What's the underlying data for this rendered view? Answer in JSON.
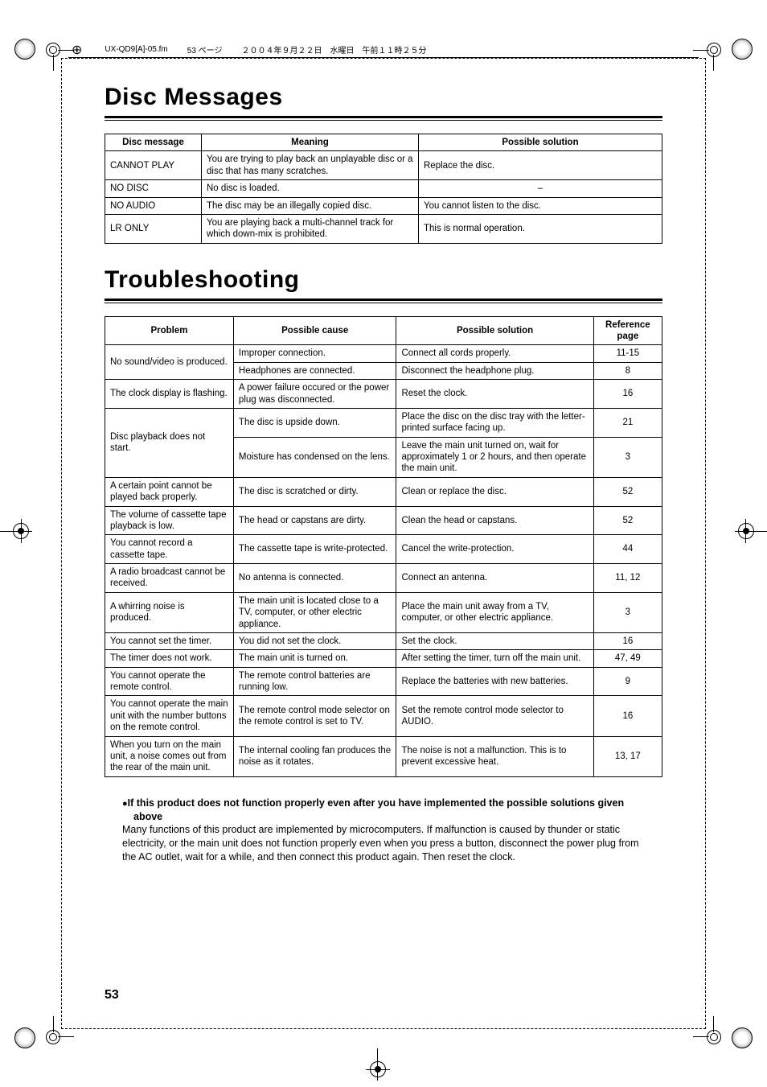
{
  "header": {
    "file": "UX-QD9[A]-05.fm",
    "page_label": "53 ページ",
    "date": "２００４年９月２２日　水曜日　午前１１時２５分"
  },
  "section1": {
    "title": "Disc Messages",
    "columns": [
      "Disc message",
      "Meaning",
      "Possible solution"
    ],
    "col_widths": [
      "120px",
      "270px",
      "auto"
    ],
    "rows": [
      [
        "CANNOT PLAY",
        "You are trying to play back an unplayable disc or a disc that has many scratches.",
        "Replace the disc."
      ],
      [
        "NO DISC",
        "No disc is loaded.",
        "–"
      ],
      [
        "NO AUDIO",
        "The disc may be an illegally copied disc.",
        "You cannot listen to the disc."
      ],
      [
        "LR ONLY",
        "You are playing back a multi-channel track for which down-mix is prohibited.",
        "This is normal operation."
      ]
    ],
    "row_centered_cols": [
      null,
      null,
      [
        2
      ],
      null,
      null
    ]
  },
  "section2": {
    "title": "Troubleshooting",
    "columns": [
      "Problem",
      "Possible cause",
      "Possible solution",
      "Reference page"
    ],
    "col_widths": [
      "150px",
      "190px",
      "230px",
      "80px"
    ],
    "rows": [
      {
        "problem": "No sound/video is produced.",
        "rowspan": 2,
        "cause": "Improper connection.",
        "solution": "Connect all cords properly.",
        "ref": "11-15"
      },
      {
        "cause": "Headphones are connected.",
        "solution": "Disconnect the headphone plug.",
        "ref": "8"
      },
      {
        "problem": "The clock display is flashing.",
        "cause": "A power failure occured or the power plug was disconnected.",
        "solution": "Reset the clock.",
        "ref": "16"
      },
      {
        "problem": "Disc playback does not start.",
        "rowspan": 2,
        "cause": "The disc is upside down.",
        "solution": "Place the disc on the disc tray with the letter-printed surface facing up.",
        "ref": "21"
      },
      {
        "cause": "Moisture has condensed on the lens.",
        "solution": "Leave the main unit turned on, wait for approximately 1 or 2 hours, and then operate the main unit.",
        "ref": "3"
      },
      {
        "problem": "A certain point cannot be played back properly.",
        "cause": "The disc is scratched or dirty.",
        "solution": "Clean or replace the disc.",
        "ref": "52"
      },
      {
        "problem": "The volume of cassette tape playback is low.",
        "cause": "The head or capstans are dirty.",
        "solution": "Clean the head or capstans.",
        "ref": "52"
      },
      {
        "problem": "You cannot record a cassette tape.",
        "cause": "The cassette tape is write-protected.",
        "solution": "Cancel the write-protection.",
        "ref": "44"
      },
      {
        "problem": "A radio broadcast cannot be received.",
        "cause": "No antenna is connected.",
        "solution": "Connect an antenna.",
        "ref": "11, 12"
      },
      {
        "problem": "A whirring noise is produced.",
        "cause": "The main unit is located close to a TV, computer, or other electric appliance.",
        "solution": "Place the main unit away from a TV, computer, or other electric appliance.",
        "ref": "3"
      },
      {
        "problem": "You cannot set the timer.",
        "cause": "You did not set the clock.",
        "solution": "Set the clock.",
        "ref": "16"
      },
      {
        "problem": "The timer does not work.",
        "cause": "The main unit is turned on.",
        "solution": "After setting the timer, turn off the main unit.",
        "ref": "47, 49"
      },
      {
        "problem": "You cannot operate the remote control.",
        "cause": "The remote control batteries are running low.",
        "solution": "Replace the batteries with new batteries.",
        "ref": "9"
      },
      {
        "problem": "You cannot operate the main unit with the number buttons on the remote control.",
        "cause": "The remote control mode selector on the remote control is set to TV.",
        "solution": "Set the remote control mode selector to AUDIO.",
        "ref": "16"
      },
      {
        "problem": "When you turn on the main unit, a noise comes out from the rear of the main unit.",
        "cause": "The internal cooling fan produces the noise as it rotates.",
        "solution": "The noise is not a malfunction. This is to prevent excessive heat.",
        "ref": "13, 17"
      }
    ]
  },
  "note": {
    "heading": "If this product does not function properly even after you have implemented the possible solutions given above",
    "body": "Many functions of this product are implemented by microcomputers. If malfunction is caused by thunder or static electricity, or the main unit does not function properly even when you press a button, disconnect the power plug from the AC outlet, wait for a while, and then connect this product again. Then reset the clock."
  },
  "page_number": "53",
  "style": {
    "heading_fontsize": 30,
    "table_fontsize": 11.5,
    "border_color": "#000000",
    "background": "#ffffff"
  }
}
